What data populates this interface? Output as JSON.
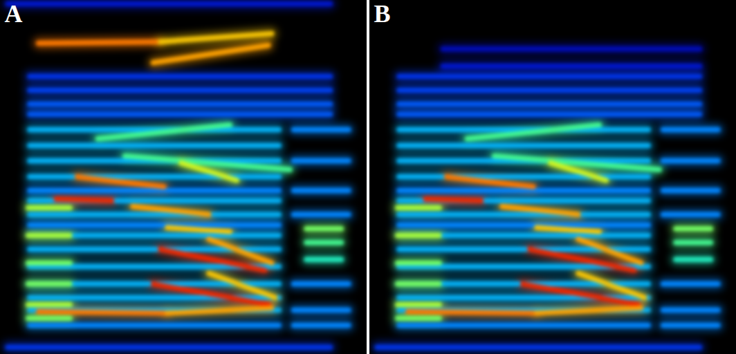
{
  "chart_data": [
    {
      "type": "spectrogram",
      "title": "A",
      "tick_labels": false,
      "xlim": [
        0,
        100
      ],
      "ylim": [
        0,
        100
      ],
      "zlim": [
        0,
        1
      ],
      "streaks": [
        {
          "x1": 2,
          "y1": 99,
          "x2": 90,
          "y2": 99,
          "value": 0.15
        },
        {
          "x1": 8,
          "y1": 78.5,
          "x2": 90,
          "y2": 78.5,
          "value": 0.2
        },
        {
          "x1": 8,
          "y1": 74.6,
          "x2": 90,
          "y2": 74.6,
          "value": 0.22
        },
        {
          "x1": 8,
          "y1": 70.7,
          "x2": 90,
          "y2": 70.7,
          "value": 0.25
        },
        {
          "x1": 8,
          "y1": 67.8,
          "x2": 90,
          "y2": 67.8,
          "value": 0.25
        },
        {
          "x1": 8,
          "y1": 63.5,
          "x2": 76,
          "y2": 63.5,
          "value": 0.35
        },
        {
          "x1": 8,
          "y1": 59,
          "x2": 76,
          "y2": 59,
          "value": 0.35
        },
        {
          "x1": 8,
          "y1": 54.7,
          "x2": 76,
          "y2": 54.7,
          "value": 0.35
        },
        {
          "x1": 8,
          "y1": 50.2,
          "x2": 76,
          "y2": 50.2,
          "value": 0.35
        },
        {
          "x1": 8,
          "y1": 46.3,
          "x2": 76,
          "y2": 46.3,
          "value": 0.3
        },
        {
          "x1": 8,
          "y1": 43.4,
          "x2": 76,
          "y2": 43.4,
          "value": 0.35
        },
        {
          "x1": 8,
          "y1": 39.5,
          "x2": 76,
          "y2": 39.5,
          "value": 0.35
        },
        {
          "x1": 8,
          "y1": 36.5,
          "x2": 76,
          "y2": 36.5,
          "value": 0.3
        },
        {
          "x1": 8,
          "y1": 33.6,
          "x2": 76,
          "y2": 33.6,
          "value": 0.35
        },
        {
          "x1": 8,
          "y1": 29.7,
          "x2": 76,
          "y2": 29.7,
          "value": 0.35
        },
        {
          "x1": 8,
          "y1": 24.8,
          "x2": 76,
          "y2": 24.8,
          "value": 0.35
        },
        {
          "x1": 8,
          "y1": 19.9,
          "x2": 76,
          "y2": 19.9,
          "value": 0.35
        },
        {
          "x1": 8,
          "y1": 16,
          "x2": 76,
          "y2": 16,
          "value": 0.35
        },
        {
          "x1": 8,
          "y1": 12.5,
          "x2": 76,
          "y2": 12.5,
          "value": 0.35
        },
        {
          "x1": 8,
          "y1": 8.2,
          "x2": 76,
          "y2": 8.2,
          "value": 0.3
        },
        {
          "x1": 2,
          "y1": 2,
          "x2": 90,
          "y2": 2,
          "value": 0.2
        },
        {
          "x1": 80,
          "y1": 63.5,
          "x2": 95,
          "y2": 63.5,
          "value": 0.3
        },
        {
          "x1": 80,
          "y1": 54.7,
          "x2": 95,
          "y2": 54.7,
          "value": 0.3
        },
        {
          "x1": 80,
          "y1": 46.3,
          "x2": 95,
          "y2": 46.3,
          "value": 0.3
        },
        {
          "x1": 80,
          "y1": 39.5,
          "x2": 95,
          "y2": 39.5,
          "value": 0.3
        },
        {
          "x1": 80,
          "y1": 19.9,
          "x2": 95,
          "y2": 19.9,
          "value": 0.3
        },
        {
          "x1": 80,
          "y1": 12.5,
          "x2": 95,
          "y2": 12.5,
          "value": 0.3
        },
        {
          "x1": 80,
          "y1": 8.2,
          "x2": 95,
          "y2": 8.2,
          "value": 0.3
        },
        {
          "x1": 83.5,
          "y1": 35.5,
          "x2": 93,
          "y2": 35.5,
          "value": 0.55
        },
        {
          "x1": 83.5,
          "y1": 31.6,
          "x2": 93,
          "y2": 31.6,
          "value": 0.5
        },
        {
          "x1": 83.5,
          "y1": 26.8,
          "x2": 93,
          "y2": 26.8,
          "value": 0.45
        },
        {
          "x1": 7.6,
          "y1": 41.4,
          "x2": 19,
          "y2": 41.4,
          "value": 0.6
        },
        {
          "x1": 7.6,
          "y1": 33.6,
          "x2": 19,
          "y2": 33.6,
          "value": 0.6
        },
        {
          "x1": 7.6,
          "y1": 25.8,
          "x2": 19,
          "y2": 25.8,
          "value": 0.55
        },
        {
          "x1": 7.6,
          "y1": 19.9,
          "x2": 19,
          "y2": 19.9,
          "value": 0.55
        },
        {
          "x1": 7.6,
          "y1": 14,
          "x2": 19,
          "y2": 14,
          "value": 0.6
        },
        {
          "x1": 7.6,
          "y1": 10.2,
          "x2": 19,
          "y2": 10.2,
          "value": 0.55
        },
        {
          "x1": 26.6,
          "y1": 60.9,
          "x2": 62.6,
          "y2": 64.8,
          "value": 0.5
        },
        {
          "x1": 34,
          "y1": 56,
          "x2": 79,
          "y2": 52.2,
          "value": 0.5
        },
        {
          "x1": 49.3,
          "y1": 54.1,
          "x2": 64.5,
          "y2": 49.2,
          "value": 0.65
        },
        {
          "x1": 20.9,
          "y1": 50.2,
          "x2": 44.6,
          "y2": 47.3,
          "value": 0.85
        },
        {
          "x1": 15.2,
          "y1": 43.8,
          "x2": 30.4,
          "y2": 43.4,
          "value": 0.95
        },
        {
          "x1": 36.1,
          "y1": 41.8,
          "x2": 56.9,
          "y2": 39.5,
          "value": 0.8
        },
        {
          "x1": 45.5,
          "y1": 35.9,
          "x2": 62.6,
          "y2": 34.6,
          "value": 0.75
        },
        {
          "x1": 56.9,
          "y1": 32.6,
          "x2": 74,
          "y2": 25.8,
          "value": 0.8
        },
        {
          "x1": 43.6,
          "y1": 29.7,
          "x2": 72.1,
          "y2": 23.8,
          "value": 0.95
        },
        {
          "x1": 56.9,
          "y1": 22.9,
          "x2": 75,
          "y2": 16,
          "value": 0.75
        },
        {
          "x1": 41.7,
          "y1": 19.9,
          "x2": 73.1,
          "y2": 14.1,
          "value": 0.95
        },
        {
          "x1": 10.4,
          "y1": 12.1,
          "x2": 45.5,
          "y2": 11.7,
          "value": 0.85
        },
        {
          "x1": 45.5,
          "y1": 11.7,
          "x2": 74,
          "y2": 13.1,
          "value": 0.8
        },
        {
          "x1": 10.4,
          "y1": 87.9,
          "x2": 43.6,
          "y2": 88.3,
          "value": 0.85
        },
        {
          "x1": 43.6,
          "y1": 88.3,
          "x2": 74,
          "y2": 90.6,
          "value": 0.75
        },
        {
          "x1": 41.7,
          "y1": 82.4,
          "x2": 73.1,
          "y2": 87.3,
          "value": 0.8
        }
      ]
    },
    {
      "type": "spectrogram",
      "title": "B",
      "tick_labels": false,
      "xlim": [
        0,
        100
      ],
      "ylim": [
        0,
        100
      ],
      "zlim": [
        0,
        1
      ],
      "streaks": [
        {
          "x1": 20,
          "y1": 86.3,
          "x2": 90,
          "y2": 86.3,
          "value": 0.12
        },
        {
          "x1": 20,
          "y1": 81.4,
          "x2": 90,
          "y2": 81.4,
          "value": 0.15
        },
        {
          "x1": 8,
          "y1": 78.5,
          "x2": 90,
          "y2": 78.5,
          "value": 0.2
        },
        {
          "x1": 8,
          "y1": 74.6,
          "x2": 90,
          "y2": 74.6,
          "value": 0.22
        },
        {
          "x1": 8,
          "y1": 70.7,
          "x2": 90,
          "y2": 70.7,
          "value": 0.25
        },
        {
          "x1": 8,
          "y1": 67.8,
          "x2": 90,
          "y2": 67.8,
          "value": 0.25
        },
        {
          "x1": 8,
          "y1": 63.5,
          "x2": 76,
          "y2": 63.5,
          "value": 0.35
        },
        {
          "x1": 8,
          "y1": 59,
          "x2": 76,
          "y2": 59,
          "value": 0.35
        },
        {
          "x1": 8,
          "y1": 54.7,
          "x2": 76,
          "y2": 54.7,
          "value": 0.35
        },
        {
          "x1": 8,
          "y1": 50.2,
          "x2": 76,
          "y2": 50.2,
          "value": 0.35
        },
        {
          "x1": 8,
          "y1": 46.3,
          "x2": 76,
          "y2": 46.3,
          "value": 0.3
        },
        {
          "x1": 8,
          "y1": 43.4,
          "x2": 76,
          "y2": 43.4,
          "value": 0.35
        },
        {
          "x1": 8,
          "y1": 39.5,
          "x2": 76,
          "y2": 39.5,
          "value": 0.35
        },
        {
          "x1": 8,
          "y1": 36.5,
          "x2": 76,
          "y2": 36.5,
          "value": 0.3
        },
        {
          "x1": 8,
          "y1": 33.6,
          "x2": 76,
          "y2": 33.6,
          "value": 0.35
        },
        {
          "x1": 8,
          "y1": 29.7,
          "x2": 76,
          "y2": 29.7,
          "value": 0.35
        },
        {
          "x1": 8,
          "y1": 24.8,
          "x2": 76,
          "y2": 24.8,
          "value": 0.35
        },
        {
          "x1": 8,
          "y1": 19.9,
          "x2": 76,
          "y2": 19.9,
          "value": 0.35
        },
        {
          "x1": 8,
          "y1": 16,
          "x2": 76,
          "y2": 16,
          "value": 0.35
        },
        {
          "x1": 8,
          "y1": 12.5,
          "x2": 76,
          "y2": 12.5,
          "value": 0.35
        },
        {
          "x1": 8,
          "y1": 8.2,
          "x2": 76,
          "y2": 8.2,
          "value": 0.3
        },
        {
          "x1": 2,
          "y1": 2,
          "x2": 90,
          "y2": 2,
          "value": 0.2
        },
        {
          "x1": 80,
          "y1": 63.5,
          "x2": 95,
          "y2": 63.5,
          "value": 0.3
        },
        {
          "x1": 80,
          "y1": 54.7,
          "x2": 95,
          "y2": 54.7,
          "value": 0.3
        },
        {
          "x1": 80,
          "y1": 46.3,
          "x2": 95,
          "y2": 46.3,
          "value": 0.3
        },
        {
          "x1": 80,
          "y1": 39.5,
          "x2": 95,
          "y2": 39.5,
          "value": 0.3
        },
        {
          "x1": 80,
          "y1": 19.9,
          "x2": 95,
          "y2": 19.9,
          "value": 0.3
        },
        {
          "x1": 80,
          "y1": 12.5,
          "x2": 95,
          "y2": 12.5,
          "value": 0.3
        },
        {
          "x1": 80,
          "y1": 8.2,
          "x2": 95,
          "y2": 8.2,
          "value": 0.3
        },
        {
          "x1": 83.5,
          "y1": 35.5,
          "x2": 93,
          "y2": 35.5,
          "value": 0.55
        },
        {
          "x1": 83.5,
          "y1": 31.6,
          "x2": 93,
          "y2": 31.6,
          "value": 0.5
        },
        {
          "x1": 83.5,
          "y1": 26.8,
          "x2": 93,
          "y2": 26.8,
          "value": 0.45
        },
        {
          "x1": 7.6,
          "y1": 41.4,
          "x2": 19,
          "y2": 41.4,
          "value": 0.6
        },
        {
          "x1": 7.6,
          "y1": 33.6,
          "x2": 19,
          "y2": 33.6,
          "value": 0.6
        },
        {
          "x1": 7.6,
          "y1": 25.8,
          "x2": 19,
          "y2": 25.8,
          "value": 0.55
        },
        {
          "x1": 7.6,
          "y1": 19.9,
          "x2": 19,
          "y2": 19.9,
          "value": 0.55
        },
        {
          "x1": 7.6,
          "y1": 14,
          "x2": 19,
          "y2": 14,
          "value": 0.6
        },
        {
          "x1": 7.6,
          "y1": 10.2,
          "x2": 19,
          "y2": 10.2,
          "value": 0.55
        },
        {
          "x1": 26.6,
          "y1": 60.9,
          "x2": 62.6,
          "y2": 64.8,
          "value": 0.5
        },
        {
          "x1": 34,
          "y1": 56,
          "x2": 79,
          "y2": 52.2,
          "value": 0.5
        },
        {
          "x1": 49.3,
          "y1": 54.1,
          "x2": 64.5,
          "y2": 49.2,
          "value": 0.65
        },
        {
          "x1": 20.9,
          "y1": 50.2,
          "x2": 44.6,
          "y2": 47.3,
          "value": 0.85
        },
        {
          "x1": 15.2,
          "y1": 43.8,
          "x2": 30.4,
          "y2": 43.4,
          "value": 0.95
        },
        {
          "x1": 36.1,
          "y1": 41.8,
          "x2": 56.9,
          "y2": 39.5,
          "value": 0.8
        },
        {
          "x1": 45.5,
          "y1": 35.9,
          "x2": 62.6,
          "y2": 34.6,
          "value": 0.75
        },
        {
          "x1": 56.9,
          "y1": 32.6,
          "x2": 74,
          "y2": 25.8,
          "value": 0.8
        },
        {
          "x1": 43.6,
          "y1": 29.7,
          "x2": 72.1,
          "y2": 23.8,
          "value": 0.95
        },
        {
          "x1": 56.9,
          "y1": 22.9,
          "x2": 75,
          "y2": 16,
          "value": 0.75
        },
        {
          "x1": 41.7,
          "y1": 19.9,
          "x2": 73.1,
          "y2": 14.1,
          "value": 0.95
        },
        {
          "x1": 10.4,
          "y1": 12.1,
          "x2": 45.5,
          "y2": 11.7,
          "value": 0.85
        },
        {
          "x1": 45.5,
          "y1": 11.7,
          "x2": 74,
          "y2": 13.1,
          "value": 0.8
        }
      ]
    }
  ]
}
